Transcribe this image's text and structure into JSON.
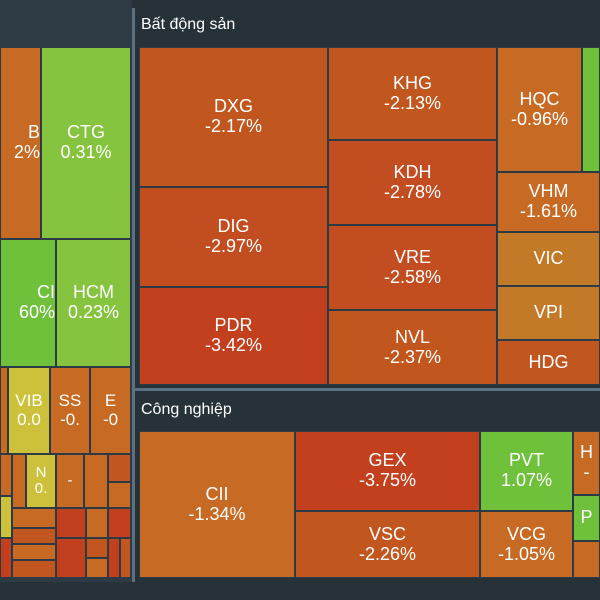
{
  "sectors": {
    "real_estate": {
      "title": "Bất động sản"
    },
    "industry": {
      "title": "Công nghiệp"
    }
  },
  "colors": {
    "deep_red": "#c2401e",
    "red_orange": "#c24d20",
    "orange": "#c1571f",
    "light_orange": "#c66a24",
    "amber": "#c27a28",
    "yellow": "#cdc13c",
    "light_green": "#86c440",
    "green": "#6fc13c",
    "background": "#263238"
  },
  "tiles": {
    "left_b": {
      "ticker": "B",
      "change": "2%"
    },
    "ctg": {
      "ticker": "CTG",
      "change": "0.31%"
    },
    "left_ci": {
      "ticker": "CI",
      "change": "60%"
    },
    "hcm": {
      "ticker": "HCM",
      "change": "0.23%"
    },
    "vib": {
      "ticker": "VIB",
      "change": "0.0"
    },
    "ss": {
      "ticker": "SS",
      "change": "-0."
    },
    "e": {
      "ticker": "E",
      "change": "-0"
    },
    "n": {
      "ticker": "N",
      "change": "0."
    },
    "dash": {
      "ticker": "-"
    },
    "dxg": {
      "ticker": "DXG",
      "change": "-2.17%"
    },
    "dig": {
      "ticker": "DIG",
      "change": "-2.97%"
    },
    "pdr": {
      "ticker": "PDR",
      "change": "-3.42%"
    },
    "khg": {
      "ticker": "KHG",
      "change": "-2.13%"
    },
    "kdh": {
      "ticker": "KDH",
      "change": "-2.78%"
    },
    "vre": {
      "ticker": "VRE",
      "change": "-2.58%"
    },
    "nvl": {
      "ticker": "NVL",
      "change": "-2.37%"
    },
    "hqc": {
      "ticker": "HQC",
      "change": "-0.96%"
    },
    "vhm": {
      "ticker": "VHM",
      "change": "-1.61%"
    },
    "vic": {
      "ticker": "VIC"
    },
    "vpi": {
      "ticker": "VPI"
    },
    "hdg": {
      "ticker": "HDG"
    },
    "cii": {
      "ticker": "CII",
      "change": "-1.34%"
    },
    "gex": {
      "ticker": "GEX",
      "change": "-3.75%"
    },
    "vsc": {
      "ticker": "VSC",
      "change": "-2.26%"
    },
    "pvt": {
      "ticker": "PVT",
      "change": "1.07%"
    },
    "vcg": {
      "ticker": "VCG",
      "change": "-1.05%"
    },
    "edge_h": {
      "ticker": "H",
      "change": "-"
    },
    "edge_p": {
      "ticker": "P"
    }
  }
}
